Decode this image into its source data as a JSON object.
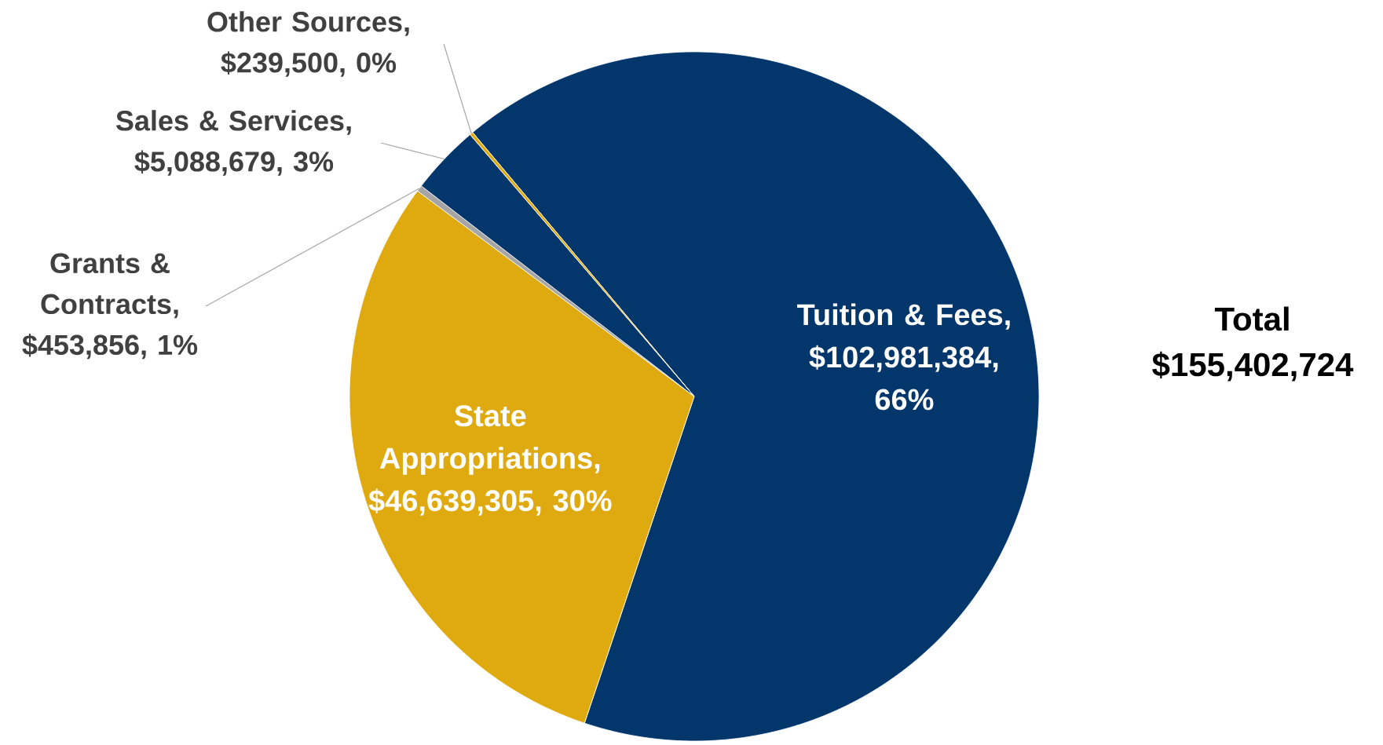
{
  "chart_data": {
    "type": "pie",
    "categories": [
      "Tuition & Fees",
      "State Appropriations",
      "Grants & Contracts",
      "Sales & Services",
      "Other Sources"
    ],
    "values": [
      102981384,
      46639305,
      453856,
      5088679,
      239500
    ],
    "colors": [
      "#03366a",
      "#dfaa10",
      "#a5a5a5",
      "#03366a",
      "#dfaa10"
    ],
    "value_labels": [
      ", $102,981,384, 66%",
      ", $46,639,305, 30%",
      ", $453,856, 1%",
      ", $5,088,679, 3%",
      ", $239,500, 0%"
    ],
    "annotations": [
      "Total $155,402,724"
    ],
    "legend": false
  }
}
